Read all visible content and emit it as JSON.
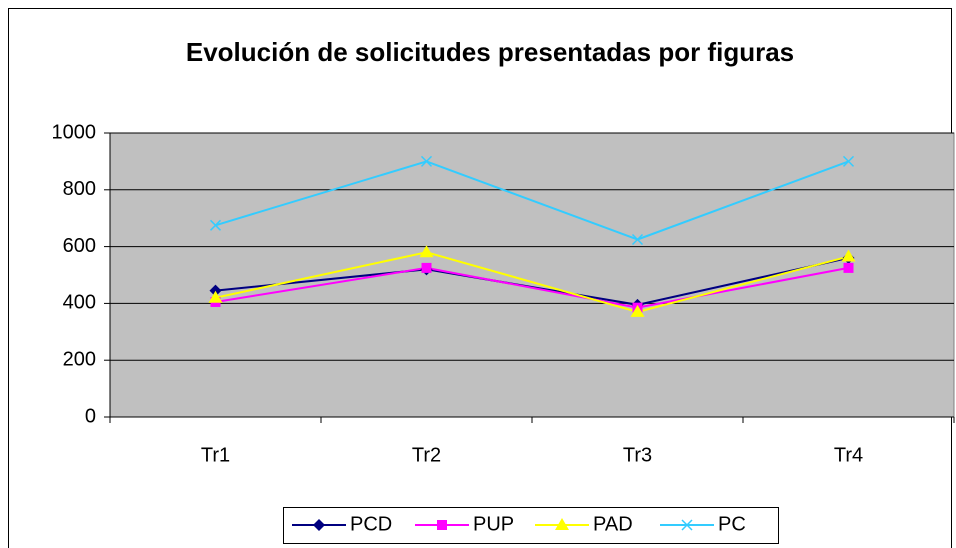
{
  "chart_data": {
    "type": "line",
    "title": "Evolución de solicitudes presentadas por figuras",
    "categories": [
      "Tr1",
      "Tr2",
      "Tr3",
      "Tr4"
    ],
    "series": [
      {
        "name": "PCD",
        "color": "#000080",
        "marker": "diamond",
        "values": [
          445,
          520,
          395,
          560
        ]
      },
      {
        "name": "PUP",
        "color": "#ff00ff",
        "marker": "square",
        "values": [
          405,
          525,
          385,
          525
        ]
      },
      {
        "name": "PAD",
        "color": "#ffff00",
        "marker": "triangle",
        "values": [
          420,
          580,
          370,
          565
        ]
      },
      {
        "name": "PC",
        "color": "#33ccff",
        "marker": "x",
        "values": [
          675,
          900,
          625,
          900
        ]
      }
    ],
    "ylim": [
      0,
      1000
    ],
    "yticks": [
      0,
      200,
      400,
      600,
      800,
      1000
    ],
    "grid": true,
    "legend": "bottom"
  }
}
